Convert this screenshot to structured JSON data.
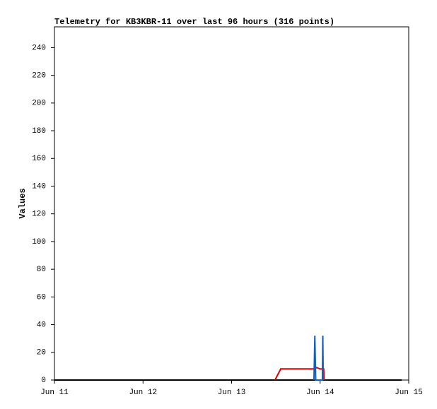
{
  "chart_data": {
    "type": "line",
    "title": "Telemetry for KB3KBR-11 over last 96 hours (316 points)",
    "y_label": "Values",
    "xlim": [
      11,
      15
    ],
    "xticks": [
      {
        "value": 11,
        "label": "Jun 11"
      },
      {
        "value": 12,
        "label": "Jun 12"
      },
      {
        "value": 13,
        "label": "Jun 13"
      },
      {
        "value": 14,
        "label": "Jun 14"
      },
      {
        "value": 15,
        "label": "Jun 15"
      }
    ],
    "ylim": [
      0,
      255
    ],
    "yticks": [
      0,
      20,
      40,
      60,
      80,
      100,
      120,
      140,
      160,
      180,
      200,
      220,
      240
    ],
    "series": [
      {
        "color": "#000000",
        "x": [
          11,
          14.92
        ],
        "values": [
          0,
          0
        ]
      },
      {
        "color": "#dd0000",
        "x": [
          13.49,
          13.555,
          13.94,
          13.96,
          14.0,
          14.04,
          14.045
        ],
        "values": [
          0,
          8,
          8,
          9,
          8,
          8,
          0
        ]
      },
      {
        "color": "#1060c0",
        "x": [
          13.93,
          13.935,
          13.94,
          13.945,
          13.95,
          14.025,
          14.03,
          14.035
        ],
        "values": [
          0,
          16,
          32,
          16,
          0,
          0,
          32,
          0
        ]
      }
    ]
  }
}
